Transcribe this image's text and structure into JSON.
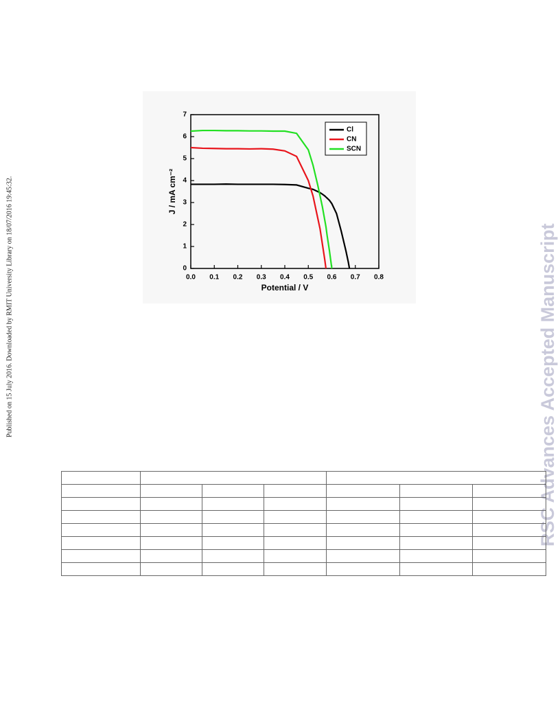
{
  "side_note": "Published on 15 July 2016. Downloaded by RMIT University Library on 18/07/2016 19:45:32.",
  "watermark": "RSC Advances Accepted Manuscript",
  "chart_data": {
    "type": "line",
    "xlabel": "Potential / V",
    "ylabel": "J / mA cm⁻²",
    "x": [
      0,
      0.05,
      0.1,
      0.15,
      0.2,
      0.25,
      0.3,
      0.35,
      0.4,
      0.45,
      0.5,
      0.52,
      0.54,
      0.55,
      0.56,
      0.57,
      0.575,
      0.58,
      0.59,
      0.6,
      0.62,
      0.64,
      0.66,
      0.67,
      0.675
    ],
    "series": [
      {
        "name": "Cl",
        "color": "#000000",
        "values": [
          3.83,
          3.83,
          3.83,
          3.84,
          3.83,
          3.83,
          3.83,
          3.83,
          3.82,
          3.8,
          3.65,
          3.6,
          3.5,
          3.45,
          3.38,
          3.3,
          3.25,
          3.2,
          3.1,
          2.95,
          2.5,
          1.7,
          0.8,
          0.3,
          0
        ]
      },
      {
        "name": "CN",
        "color": "#e8141b",
        "values": [
          5.5,
          5.47,
          5.46,
          5.45,
          5.45,
          5.44,
          5.45,
          5.43,
          5.35,
          5.1,
          4.0,
          3.3,
          2.3,
          1.8,
          1.1,
          0.4,
          0,
          null,
          null,
          null,
          null,
          null,
          null,
          null,
          null
        ]
      },
      {
        "name": "SCN",
        "color": "#22e022",
        "values": [
          6.25,
          6.28,
          6.28,
          6.27,
          6.27,
          6.26,
          6.26,
          6.25,
          6.25,
          6.15,
          5.4,
          4.7,
          3.8,
          3.3,
          2.8,
          2.2,
          1.9,
          1.5,
          0.8,
          0,
          null,
          null,
          null,
          null,
          null
        ]
      }
    ],
    "xlim": [
      0,
      0.8
    ],
    "ylim": [
      0,
      7
    ],
    "xticks": [
      {
        "value": 0,
        "label": "0.0"
      },
      0.1,
      0.2,
      0.3,
      0.4,
      0.5,
      0.6,
      0.7,
      0.8
    ],
    "yticks": [
      0,
      1,
      2,
      3,
      4,
      5,
      6,
      7
    ],
    "legend": "upper right"
  }
}
